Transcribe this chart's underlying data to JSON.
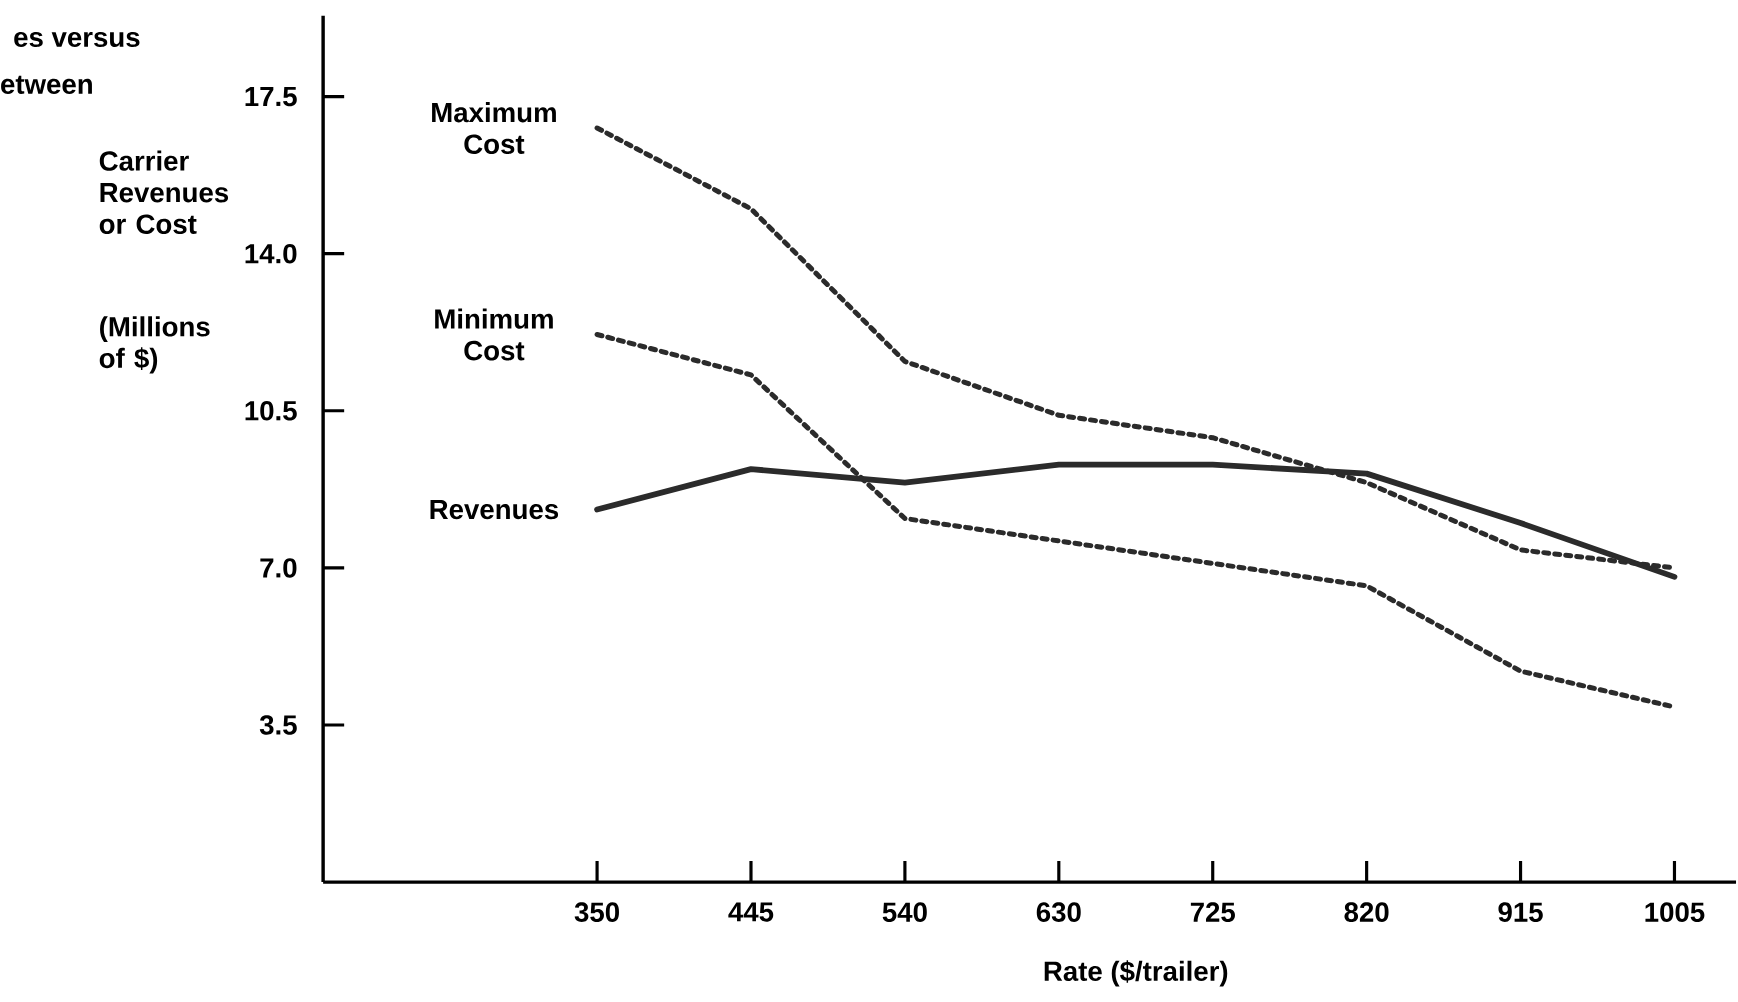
{
  "chart_data": {
    "type": "line",
    "xlabel": "Rate ($/trailer)",
    "ylabel": "Carrier Revenues or Cost",
    "annotations": [
      "es versus",
      "etween",
      "(Millions of $)"
    ],
    "categories": [
      "350",
      "445",
      "540",
      "630",
      "725",
      "820",
      "915",
      "1005"
    ],
    "series": [
      {
        "name": "Maximum Cost",
        "color": "#2b2b2b",
        "line_style": "dotted",
        "values": [
          16.8,
          15.0,
          11.6,
          10.4,
          9.9,
          8.9,
          7.4,
          7.0
        ]
      },
      {
        "name": "Minimum Cost",
        "color": "#2b2b2b",
        "line_style": "dotted",
        "values": [
          12.2,
          11.3,
          8.1,
          7.6,
          7.1,
          6.6,
          4.7,
          3.9
        ]
      },
      {
        "name": "Revenues",
        "color": "#2b2b2b",
        "line_style": "solid",
        "values": [
          8.3,
          9.2,
          8.9,
          9.3,
          9.3,
          9.1,
          8.0,
          6.8
        ]
      }
    ],
    "marker": "none",
    "ylim": [
      0,
      19.3
    ],
    "yticks": [
      3.5,
      {
        "value": 7,
        "label": "7.0"
      },
      10.5,
      {
        "value": 14,
        "label": "14.0"
      },
      17.5
    ]
  }
}
